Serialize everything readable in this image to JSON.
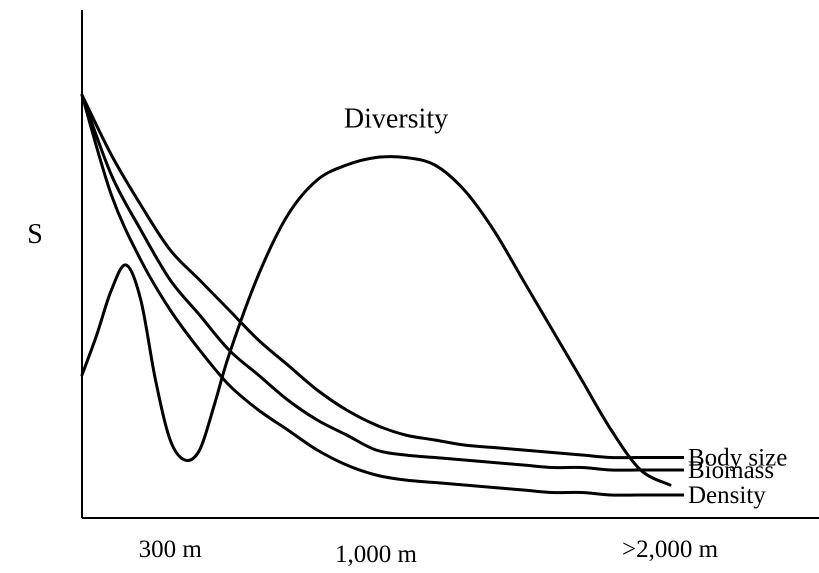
{
  "chart_data": {
    "type": "line",
    "title": "",
    "xlabel": "",
    "ylabel": "S",
    "x_ticks": [
      {
        "label": "300 m",
        "x": 300
      },
      {
        "label": "1,000 m",
        "x": 1000
      },
      {
        "label": ">2,000 m",
        "x": 2000
      }
    ],
    "annotations": [
      {
        "text": "Diversity",
        "series": "Diversity"
      }
    ],
    "series": [
      {
        "name": "Body size",
        "x": [
          0,
          100,
          200,
          300,
          400,
          500,
          600,
          700,
          800,
          900,
          1000,
          1100,
          1200,
          1300,
          1400,
          1500,
          1600,
          1700,
          1800,
          1900,
          2000
        ],
        "y": [
          82,
          70,
          60,
          51,
          45,
          39,
          33,
          28,
          23,
          19,
          16,
          14,
          13,
          12,
          11.5,
          11,
          10.5,
          10,
          9.5,
          9.5,
          9.5
        ]
      },
      {
        "name": "Biomass",
        "x": [
          0,
          100,
          200,
          300,
          400,
          500,
          600,
          700,
          800,
          900,
          1000,
          1100,
          1200,
          1300,
          1400,
          1500,
          1600,
          1700,
          1800,
          1900,
          2000
        ],
        "y": [
          82,
          66,
          55,
          45,
          38,
          31,
          26,
          21,
          17,
          14,
          11,
          10,
          9.5,
          9,
          8.5,
          8,
          7.5,
          7.5,
          7,
          7,
          7
        ]
      },
      {
        "name": "Density",
        "x": [
          0,
          100,
          200,
          300,
          400,
          500,
          600,
          700,
          800,
          900,
          1000,
          1100,
          1200,
          1300,
          1400,
          1500,
          1600,
          1700,
          1800,
          1900,
          2000
        ],
        "y": [
          82,
          62,
          49,
          39,
          31,
          24,
          19,
          15,
          11,
          8,
          6,
          5,
          4.5,
          4,
          3.5,
          3,
          2.5,
          2.5,
          2,
          2,
          2
        ]
      },
      {
        "name": "Diversity",
        "x": [
          0,
          50,
          100,
          150,
          200,
          250,
          300,
          350,
          400,
          450,
          500,
          600,
          700,
          800,
          900,
          1000,
          1100,
          1200,
          1300,
          1400,
          1500,
          1600,
          1700,
          1800,
          1900,
          2000
        ],
        "y": [
          26,
          34,
          43,
          48,
          41,
          25,
          13,
          9,
          11,
          20,
          30,
          46,
          58,
          65,
          68,
          69.5,
          69.5,
          68,
          63,
          55,
          45,
          35,
          25,
          15,
          7,
          4
        ]
      }
    ],
    "xlim": [
      0,
      2000
    ],
    "ylim": [
      0,
      100
    ],
    "grid": false,
    "legend": "direct-labels-right"
  }
}
